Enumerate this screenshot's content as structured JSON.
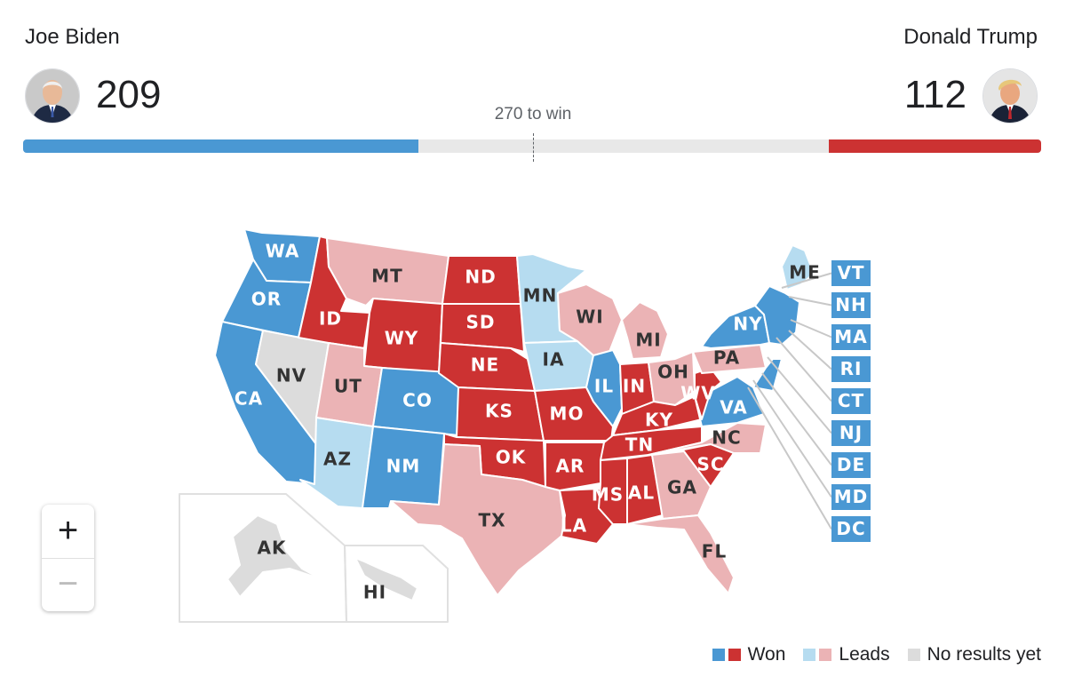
{
  "header": {
    "dem": {
      "name": "Joe Biden",
      "electoral_votes": "209",
      "avatar_icon": "biden-portrait",
      "color": "#4a98d3"
    },
    "rep": {
      "name": "Donald Trump",
      "electoral_votes": "112",
      "avatar_icon": "trump-portrait",
      "color": "#cc3232"
    },
    "threshold_label": "270 to win",
    "total_electoral_votes": 538,
    "threshold": 270
  },
  "colors": {
    "dem_won": "#4a98d3",
    "rep_won": "#cc3232",
    "dem_leads": "#b6dcf0",
    "rep_leads": "#ebb3b5",
    "no_results": "#dcdcdc"
  },
  "states": [
    {
      "abbr": "WA",
      "status": "dem_won"
    },
    {
      "abbr": "OR",
      "status": "dem_won"
    },
    {
      "abbr": "CA",
      "status": "dem_won"
    },
    {
      "abbr": "NV",
      "status": "no_results"
    },
    {
      "abbr": "ID",
      "status": "rep_won"
    },
    {
      "abbr": "MT",
      "status": "rep_leads"
    },
    {
      "abbr": "WY",
      "status": "rep_won"
    },
    {
      "abbr": "UT",
      "status": "rep_leads"
    },
    {
      "abbr": "AZ",
      "status": "dem_leads"
    },
    {
      "abbr": "CO",
      "status": "dem_won"
    },
    {
      "abbr": "NM",
      "status": "dem_won"
    },
    {
      "abbr": "ND",
      "status": "rep_won"
    },
    {
      "abbr": "SD",
      "status": "rep_won"
    },
    {
      "abbr": "NE",
      "status": "rep_won"
    },
    {
      "abbr": "KS",
      "status": "rep_won"
    },
    {
      "abbr": "OK",
      "status": "rep_won"
    },
    {
      "abbr": "TX",
      "status": "rep_leads"
    },
    {
      "abbr": "MN",
      "status": "dem_leads"
    },
    {
      "abbr": "IA",
      "status": "dem_leads"
    },
    {
      "abbr": "MO",
      "status": "rep_won"
    },
    {
      "abbr": "AR",
      "status": "rep_won"
    },
    {
      "abbr": "LA",
      "status": "rep_won"
    },
    {
      "abbr": "WI",
      "status": "rep_leads"
    },
    {
      "abbr": "IL",
      "status": "dem_won"
    },
    {
      "abbr": "MI",
      "status": "rep_leads"
    },
    {
      "abbr": "IN",
      "status": "rep_won"
    },
    {
      "abbr": "OH",
      "status": "rep_leads"
    },
    {
      "abbr": "KY",
      "status": "rep_won"
    },
    {
      "abbr": "TN",
      "status": "rep_won"
    },
    {
      "abbr": "MS",
      "status": "rep_won"
    },
    {
      "abbr": "AL",
      "status": "rep_won"
    },
    {
      "abbr": "GA",
      "status": "rep_leads"
    },
    {
      "abbr": "FL",
      "status": "rep_leads"
    },
    {
      "abbr": "SC",
      "status": "rep_won"
    },
    {
      "abbr": "NC",
      "status": "rep_leads"
    },
    {
      "abbr": "VA",
      "status": "dem_won"
    },
    {
      "abbr": "WV",
      "status": "rep_won"
    },
    {
      "abbr": "PA",
      "status": "rep_leads"
    },
    {
      "abbr": "NY",
      "status": "dem_won"
    },
    {
      "abbr": "ME",
      "status": "dem_leads"
    },
    {
      "abbr": "AK",
      "status": "no_results"
    },
    {
      "abbr": "HI",
      "status": "no_results"
    }
  ],
  "small_states": [
    {
      "abbr": "VT",
      "status": "dem_won"
    },
    {
      "abbr": "NH",
      "status": "dem_won"
    },
    {
      "abbr": "MA",
      "status": "dem_won"
    },
    {
      "abbr": "RI",
      "status": "dem_won"
    },
    {
      "abbr": "CT",
      "status": "dem_won"
    },
    {
      "abbr": "NJ",
      "status": "dem_won"
    },
    {
      "abbr": "DE",
      "status": "dem_won"
    },
    {
      "abbr": "MD",
      "status": "dem_won"
    },
    {
      "abbr": "DC",
      "status": "dem_won"
    }
  ],
  "zoom": {
    "in_label": "+",
    "out_label": "−"
  },
  "legend": {
    "won_label": "Won",
    "leads_label": "Leads",
    "no_results_label": "No results yet"
  }
}
